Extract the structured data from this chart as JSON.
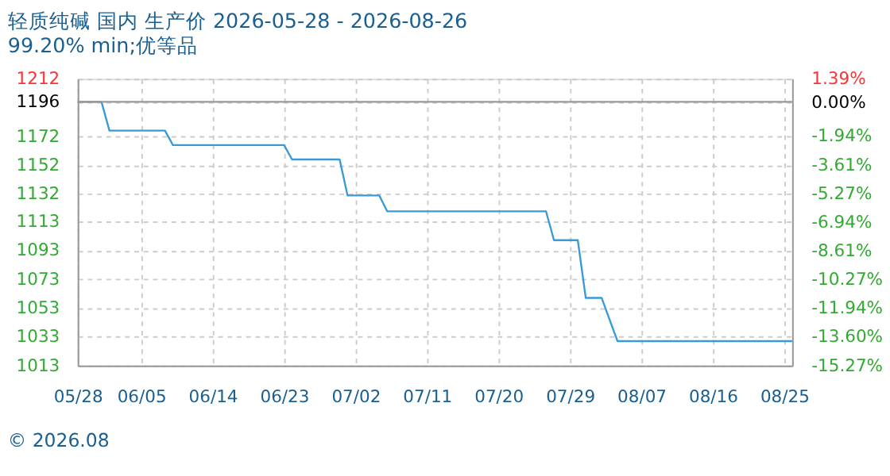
{
  "chart_data": {
    "type": "line",
    "title": "轻质纯碱 国内 生产价 2026-05-28 - 2026-08-26",
    "subtitle": "99.20% min;优等品",
    "x": [
      "2026-05-28",
      "2026-05-31",
      "2026-06-01",
      "2026-06-08",
      "2026-06-09",
      "2026-06-23",
      "2026-06-24",
      "2026-06-30",
      "2026-07-01",
      "2026-07-05",
      "2026-07-06",
      "2026-07-26",
      "2026-07-27",
      "2026-07-30",
      "2026-07-31",
      "2026-08-02",
      "2026-08-04",
      "2026-08-26"
    ],
    "series": [
      {
        "color": "#3a9ad9",
        "values": [
          1196,
          1196,
          1176,
          1176,
          1166,
          1166,
          1156,
          1156,
          1131,
          1131,
          1120,
          1120,
          1100,
          1100,
          1060,
          1060,
          1030,
          1030
        ]
      }
    ],
    "xlim": [
      "2026-05-28",
      "2026-08-26"
    ],
    "xticks": [
      {
        "value": "2026-05-28",
        "label": "05/28"
      },
      {
        "value": "2026-06-05",
        "label": "06/05"
      },
      {
        "value": "2026-06-14",
        "label": "06/14"
      },
      {
        "value": "2026-06-23",
        "label": "06/23"
      },
      {
        "value": "2026-07-02",
        "label": "07/02"
      },
      {
        "value": "2026-07-11",
        "label": "07/11"
      },
      {
        "value": "2026-07-20",
        "label": "07/20"
      },
      {
        "value": "2026-07-29",
        "label": "07/29"
      },
      {
        "value": "2026-08-07",
        "label": "08/07"
      },
      {
        "value": "2026-08-16",
        "label": "08/16"
      },
      {
        "value": "2026-08-25",
        "label": "08/25"
      }
    ],
    "ylim": [
      1013,
      1212
    ],
    "yticks": [
      1013,
      1033,
      1053,
      1073,
      1093,
      1113,
      1132,
      1152,
      1172,
      1196,
      1212
    ],
    "y2lim": [
      -15.27,
      1.39
    ],
    "y2ticks": [
      {
        "value": -15.27,
        "label": "-15.27%"
      },
      {
        "value": -13.6,
        "label": "-13.60%"
      },
      {
        "value": -11.94,
        "label": "-11.94%"
      },
      {
        "value": -10.27,
        "label": "-10.27%"
      },
      {
        "value": -8.61,
        "label": "-8.61%"
      },
      {
        "value": -6.94,
        "label": "-6.94%"
      },
      {
        "value": -5.27,
        "label": "-5.27%"
      },
      {
        "value": -3.61,
        "label": "-3.61%"
      },
      {
        "value": -1.94,
        "label": "-1.94%"
      },
      {
        "value": 0,
        "label": "0.00%"
      },
      {
        "value": 1.39,
        "label": "1.39%"
      }
    ],
    "ref_lines": [
      {
        "axis": "y",
        "value": 1196,
        "color": "#999999",
        "line_style": "solid"
      }
    ],
    "grid": true,
    "marker": "none",
    "line_style": "solid",
    "legend": false,
    "annotations": [
      "© 2026.08"
    ]
  }
}
